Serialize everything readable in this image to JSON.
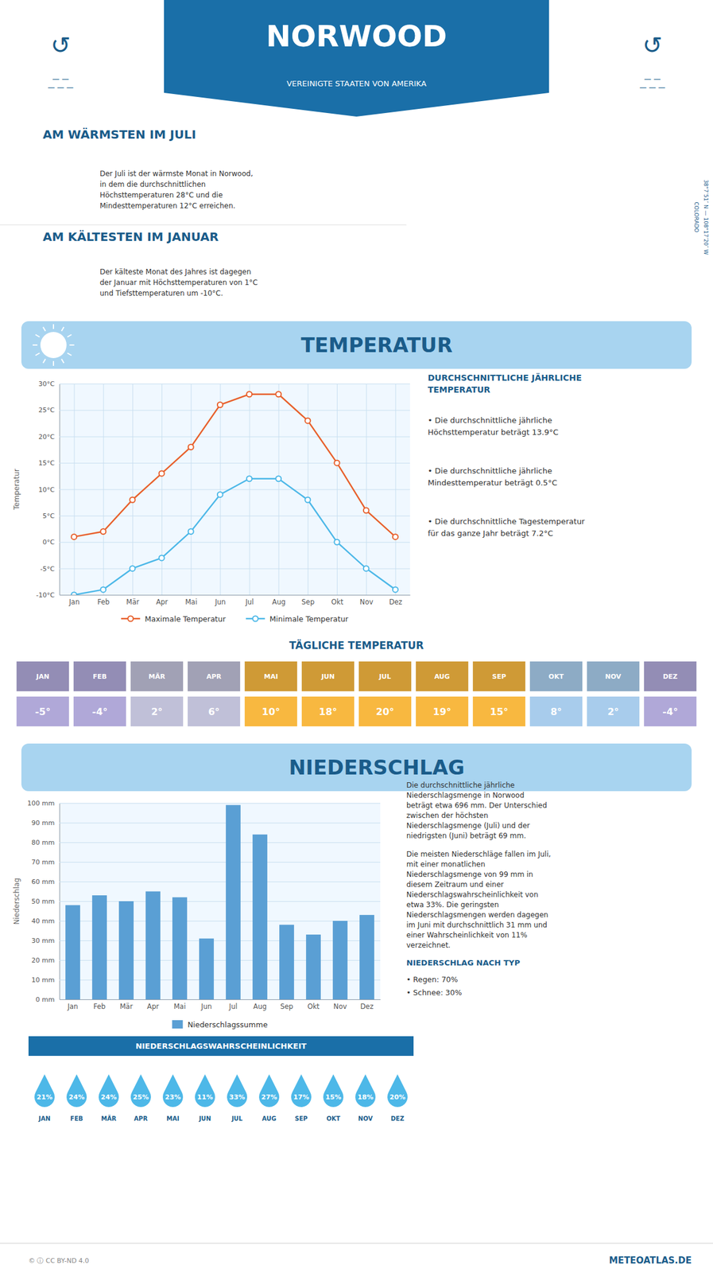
{
  "title": "NORWOOD",
  "subtitle": "VEREINIGTE STAATEN VON AMERIKA",
  "annotations": [
    "AM WÄRMSTEN IM JULI",
    "Der Juli ist der wärmste Monat in Norwood,\nin dem die durchschnittlichen\nHöchsttemperaturen 28°C und die\nMindesttemperaturen 12°C erreichen.",
    "AM KÄLTESTEN IM JANUAR",
    "Der kälteste Monat des Jahres ist dagegen\nder Januar mit Höchsttemperaturen von 1°C\nund Tiefsttemperaturen um -10°C.",
    "38°7’51″ N — 108°17’20″ W\nCOLORADO",
    "↺",
    "—  —\n— — —",
    "©  ⓘ  CC BY-ND 4.0",
    "METEOATLAS.DE"
  ],
  "chart_data": [
    {
      "type": "line",
      "title": "TEMPERATUR",
      "ylabel": "Temperatur",
      "categories": [
        "Jan",
        "Feb",
        "Mär",
        "Apr",
        "Mai",
        "Jun",
        "Jul",
        "Aug",
        "Sep",
        "Okt",
        "Nov",
        "Dez"
      ],
      "series": [
        {
          "name": "Maximale Temperatur",
          "color": "#e8602c",
          "marker": "circle",
          "values": [
            1,
            2,
            8,
            13,
            18,
            26,
            28,
            28,
            23,
            15,
            6,
            1
          ]
        },
        {
          "name": "Minimale Temperatur",
          "color": "#4db8e8",
          "marker": "circle",
          "values": [
            -10,
            -9,
            -5,
            -3,
            2,
            9,
            12,
            12,
            8,
            0,
            -5,
            -9
          ]
        }
      ],
      "ylim": [
        -10,
        30
      ],
      "yticks": [
        {
          "value": -10,
          "label": "-10°C"
        },
        {
          "value": -5,
          "label": "-5°C"
        },
        {
          "value": 0,
          "label": "0°C"
        },
        {
          "value": 5,
          "label": "5°C"
        },
        {
          "value": 10,
          "label": "10°C"
        },
        {
          "value": 15,
          "label": "15°C"
        },
        {
          "value": 20,
          "label": "20°C"
        },
        {
          "value": 25,
          "label": "25°C"
        },
        {
          "value": 30,
          "label": "30°C"
        }
      ],
      "grid": true,
      "legend": "bottom",
      "annotations": [
        "DURCHSCHNITTLICHE JÄHRLICHE\nTEMPERATUR",
        "• Die durchschnittliche jährliche\nHöchsttemperatur beträgt 13.9°C",
        "• Die durchschnittliche jährliche\nMindesttemperatur beträgt 0.5°C",
        "• Die durchschnittliche Tagestemperatur\nfür das ganze Jahr beträgt 7.2°C"
      ]
    },
    {
      "type": "table",
      "title": "TÄGLICHE TEMPERATUR",
      "categories": [
        "JAN",
        "FEB",
        "MÄR",
        "APR",
        "MAI",
        "JUN",
        "JUL",
        "AUG",
        "SEP",
        "OKT",
        "NOV",
        "DEZ"
      ],
      "values": [
        -5,
        -4,
        2,
        6,
        10,
        18,
        20,
        19,
        15,
        8,
        2,
        -4
      ],
      "value_labels": [
        "-5°",
        "-4°",
        "2°",
        "6°",
        "10°",
        "18°",
        "20°",
        "19°",
        "15°",
        "8°",
        "2°",
        "-4°"
      ],
      "data_labels": true,
      "colors": [
        "#b0a8d8",
        "#b0a8d8",
        "#c0c0d8",
        "#c0c0d8",
        "#f8b840",
        "#f8b840",
        "#f8b840",
        "#f8b840",
        "#f8b840",
        "#a8ccec",
        "#a8ccec",
        "#b0a8d8"
      ]
    },
    {
      "type": "bar",
      "title": "NIEDERSCHLAG",
      "ylabel": "Niederschlag",
      "categories": [
        "Jan",
        "Feb",
        "Mär",
        "Apr",
        "Mai",
        "Jun",
        "Jul",
        "Aug",
        "Sep",
        "Okt",
        "Nov",
        "Dez"
      ],
      "series": [
        {
          "name": "Niederschlagssumme",
          "color": "#5a9fd4",
          "values": [
            48,
            53,
            50,
            55,
            52,
            31,
            99,
            84,
            38,
            33,
            40,
            43
          ]
        }
      ],
      "ylim": [
        0,
        100
      ],
      "yticks": [
        {
          "value": 0,
          "label": "0 mm"
        },
        {
          "value": 10,
          "label": "10 mm"
        },
        {
          "value": 20,
          "label": "20 mm"
        },
        {
          "value": 30,
          "label": "30 mm"
        },
        {
          "value": 40,
          "label": "40 mm"
        },
        {
          "value": 50,
          "label": "50 mm"
        },
        {
          "value": 60,
          "label": "60 mm"
        },
        {
          "value": 70,
          "label": "70 mm"
        },
        {
          "value": 80,
          "label": "80 mm"
        },
        {
          "value": 90,
          "label": "90 mm"
        },
        {
          "value": 100,
          "label": "100 mm"
        }
      ],
      "grid": true,
      "legend": "bottom",
      "annotations": [
        "Die durchschnittliche jährliche\nNiederschlagsmenge in Norwood\nbeträgt etwa 696 mm. Der Unterschied\nzwischen der höchsten\nNiederschlagsmenge (Juli) und der\nniedrigsten (Juni) beträgt 69 mm.",
        "Die meisten Niederschläge fallen im Juli,\nmit einer monatlichen\nNiederschlagsmenge von 99 mm in\ndiesem Zeitraum und einer\nNiederschlagswahrscheinlichkeit von\netwa 33%. Die geringsten\nNiederschlagsmengen werden dagegen\nim Juni mit durchschnittlich 31 mm und\neiner Wahrscheinlichkeit von 11%\nverzeichnet.",
        "NIEDERSCHLAG NACH TYP",
        "• Regen: 70%",
        "• Schnee: 30%"
      ]
    },
    {
      "type": "pictogram",
      "title": "NIEDERSCHLAGSWAHRSCHEINLICHKEIT",
      "categories": [
        "JAN",
        "FEB",
        "MÄR",
        "APR",
        "MAI",
        "JUN",
        "JUL",
        "AUG",
        "SEP",
        "OKT",
        "NOV",
        "DEZ"
      ],
      "values": [
        21,
        24,
        24,
        25,
        23,
        11,
        33,
        27,
        17,
        15,
        18,
        20
      ],
      "value_labels": [
        "21%",
        "24%",
        "24%",
        "25%",
        "23%",
        "11%",
        "33%",
        "27%",
        "17%",
        "15%",
        "18%",
        "20%"
      ],
      "data_labels": true,
      "color": "#4db8e8"
    }
  ]
}
